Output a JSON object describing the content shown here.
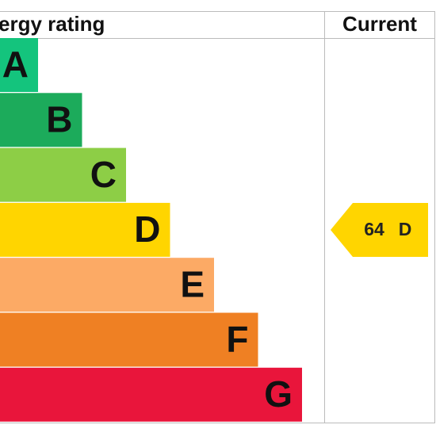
{
  "header": {
    "title": "ergy rating",
    "current": "Current"
  },
  "bands": [
    {
      "letter": "A",
      "color": "#14c47d"
    },
    {
      "letter": "B",
      "color": "#1cab5b"
    },
    {
      "letter": "C",
      "color": "#8dce46"
    },
    {
      "letter": "D",
      "color": "#ffd500"
    },
    {
      "letter": "E",
      "color": "#fcaa65"
    },
    {
      "letter": "F",
      "color": "#ef8023"
    },
    {
      "letter": "G",
      "color": "#e9153b"
    }
  ],
  "current": {
    "score": 64,
    "band": "D",
    "color": "#ffd500"
  }
}
